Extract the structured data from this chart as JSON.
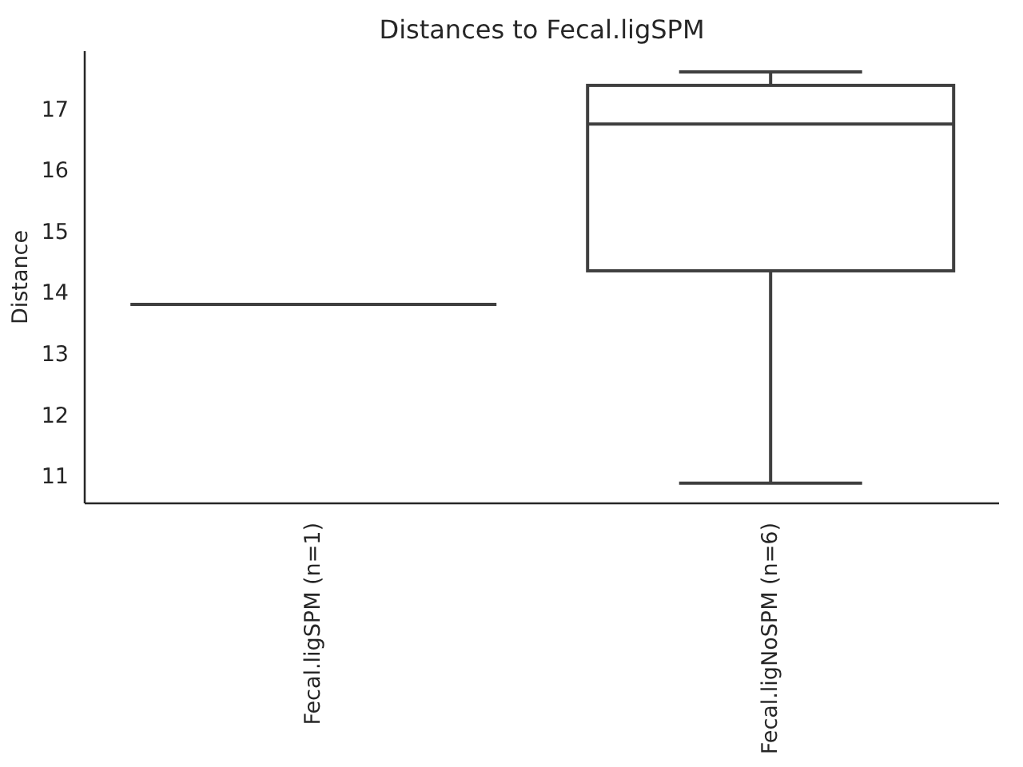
{
  "chart_data": {
    "type": "box",
    "title": "Distances to Fecal.ligSPM",
    "ylabel": "Distance",
    "categories": [
      "Fecal.ligSPM (n=1)",
      "Fecal.ligNoSPM (n=6)"
    ],
    "boxes": [
      {
        "low": 13.8,
        "q1": 13.8,
        "median": 13.8,
        "q3": 13.8,
        "high": 13.8
      },
      {
        "low": 10.88,
        "q1": 14.35,
        "median": 16.75,
        "q3": 17.38,
        "high": 17.6
      }
    ],
    "color": "#3f3f3f",
    "ylim": [
      10.55,
      17.94
    ],
    "yticks": [
      11,
      12,
      13,
      14,
      15,
      16,
      17
    ]
  }
}
